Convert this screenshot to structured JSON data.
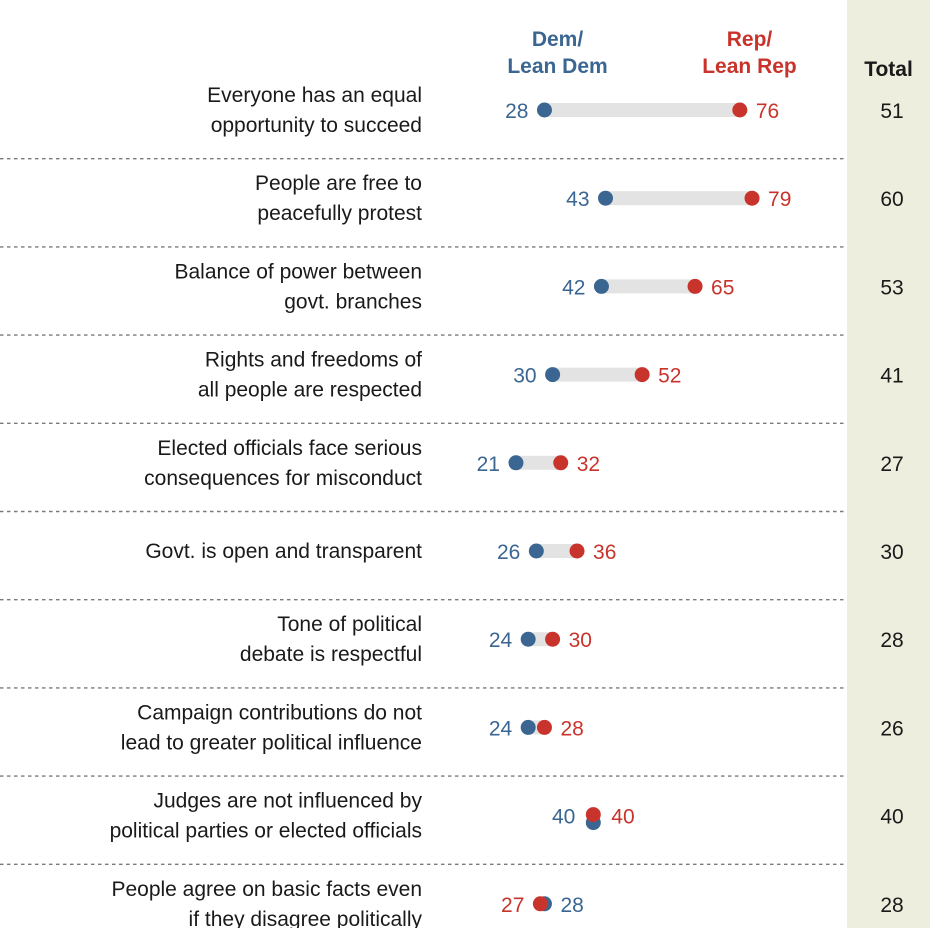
{
  "chart_data": {
    "type": "dot-plot",
    "series": [
      {
        "name": "Dem/ Lean Dem",
        "color": "#3b6692"
      },
      {
        "name": "Rep/ Lean Rep",
        "color": "#c8342c"
      }
    ],
    "header": {
      "dem_line1": "Dem/",
      "dem_line2": "Lean Dem",
      "rep_line1": "Rep/",
      "rep_line2": "Lean Rep",
      "total": "Total"
    },
    "rows": [
      {
        "label": [
          "Everyone has an equal",
          "opportunity to succeed"
        ],
        "dem": 28,
        "rep": 76,
        "total": 51
      },
      {
        "label": [
          "People are free to",
          "peacefully protest"
        ],
        "dem": 43,
        "rep": 79,
        "total": 60
      },
      {
        "label": [
          "Balance of power between",
          "govt. branches"
        ],
        "dem": 42,
        "rep": 65,
        "total": 53
      },
      {
        "label": [
          "Rights and freedoms of",
          "all people are respected"
        ],
        "dem": 30,
        "rep": 52,
        "total": 41
      },
      {
        "label": [
          "Elected officials face serious",
          "consequences for misconduct"
        ],
        "dem": 21,
        "rep": 32,
        "total": 27
      },
      {
        "label": [
          "Govt. is open and transparent"
        ],
        "dem": 26,
        "rep": 36,
        "total": 30
      },
      {
        "label": [
          "Tone of political",
          "debate is respectful"
        ],
        "dem": 24,
        "rep": 30,
        "total": 28
      },
      {
        "label": [
          "Campaign contributions do not",
          "lead to greater political influence"
        ],
        "dem": 24,
        "rep": 28,
        "total": 26
      },
      {
        "label": [
          "Judges are not influenced by",
          "political parties or elected officials"
        ],
        "dem": 40,
        "rep": 40,
        "total": 40
      },
      {
        "label": [
          "People agree on basic facts even",
          "if they disagree politically"
        ],
        "dem": 28,
        "rep": 27,
        "total": 28
      }
    ]
  }
}
